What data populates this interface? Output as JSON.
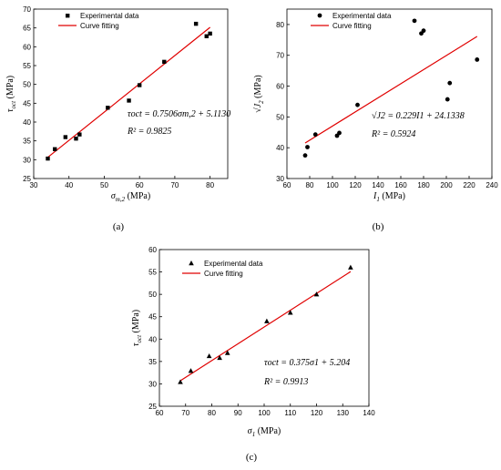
{
  "chart_data": [
    {
      "type": "scatter",
      "panel_label": "(a)",
      "x": [
        34,
        36,
        39,
        42,
        43,
        51,
        57,
        60,
        67,
        76,
        79,
        80
      ],
      "y": [
        30.3,
        32.8,
        36.0,
        35.6,
        36.7,
        43.8,
        45.7,
        49.8,
        56.0,
        66.1,
        62.8,
        63.5
      ],
      "xlabel_main": "σ",
      "xlabel_sub": "m,2",
      "xlabel_unit": " (MPa)",
      "ylabel_main": "τ",
      "ylabel_sub": "oct",
      "ylabel_unit": " (MPa)",
      "xlim": [
        30,
        85
      ],
      "ylim": [
        25,
        70
      ],
      "xticks": [
        30,
        40,
        50,
        60,
        70,
        80
      ],
      "yticks": [
        25,
        30,
        35,
        40,
        45,
        50,
        55,
        60,
        65,
        70
      ],
      "fit": {
        "slope": 0.7506,
        "intercept": 5.113,
        "x_range": [
          34,
          80
        ]
      },
      "marker": "square",
      "legend": [
        "Experimental data",
        "Curve fitting"
      ],
      "legend_position": "top-left",
      "equation": "τoct = 0.7506σm,2 + 5.1130",
      "r2": "R² = 0.9825"
    },
    {
      "type": "scatter",
      "panel_label": "(b)",
      "x": [
        76,
        78,
        85,
        104,
        106,
        122,
        172,
        178,
        180,
        201,
        203,
        227
      ],
      "y": [
        37.5,
        40.2,
        44.3,
        43.9,
        44.8,
        53.9,
        81.2,
        77.1,
        78.0,
        55.7,
        61.0,
        68.6
      ],
      "xlabel_main": "I",
      "xlabel_sub": "1",
      "xlabel_unit": " (MPa)",
      "ylabel_main": "√J",
      "ylabel_sub": "2",
      "ylabel_unit": " (MPa)",
      "xlim": [
        60,
        240
      ],
      "ylim": [
        30,
        85
      ],
      "xticks": [
        60,
        80,
        100,
        120,
        140,
        160,
        180,
        200,
        220,
        240
      ],
      "yticks": [
        30,
        40,
        50,
        60,
        70,
        80
      ],
      "fit": {
        "slope": 0.229,
        "intercept": 24.1338,
        "x_range": [
          76,
          227
        ]
      },
      "marker": "circle",
      "legend": [
        "Experimental data",
        "Curve fitting"
      ],
      "legend_position": "top-left",
      "equation": "√J2 = 0.229I1 + 24.1338",
      "r2": "R² = 0.5924"
    },
    {
      "type": "scatter",
      "panel_label": "(c)",
      "x": [
        68,
        72,
        79,
        83,
        86,
        101,
        110,
        120,
        133
      ],
      "y": [
        30.4,
        32.9,
        36.2,
        35.8,
        36.9,
        44.0,
        45.9,
        50.0,
        56.0
      ],
      "xlabel_main": "σ",
      "xlabel_sub": "1",
      "xlabel_unit": " (MPa)",
      "ylabel_main": "τ",
      "ylabel_sub": "oct",
      "ylabel_unit": " (MPa)",
      "xlim": [
        60,
        140
      ],
      "ylim": [
        25,
        60
      ],
      "xticks": [
        60,
        70,
        80,
        90,
        100,
        110,
        120,
        130,
        140
      ],
      "yticks": [
        25,
        30,
        35,
        40,
        45,
        50,
        55,
        60
      ],
      "fit": {
        "slope": 0.375,
        "intercept": 5.204,
        "x_range": [
          68,
          133
        ]
      },
      "marker": "triangle",
      "legend": [
        "Experimental data",
        "Curve fitting"
      ],
      "legend_position": "top-left",
      "equation": "τoct = 0.375σ1 + 5.204",
      "r2": "R² = 0.9913"
    }
  ],
  "colors": {
    "fit_line": "#e00000",
    "markers": "#000000",
    "axes": "#000000"
  }
}
